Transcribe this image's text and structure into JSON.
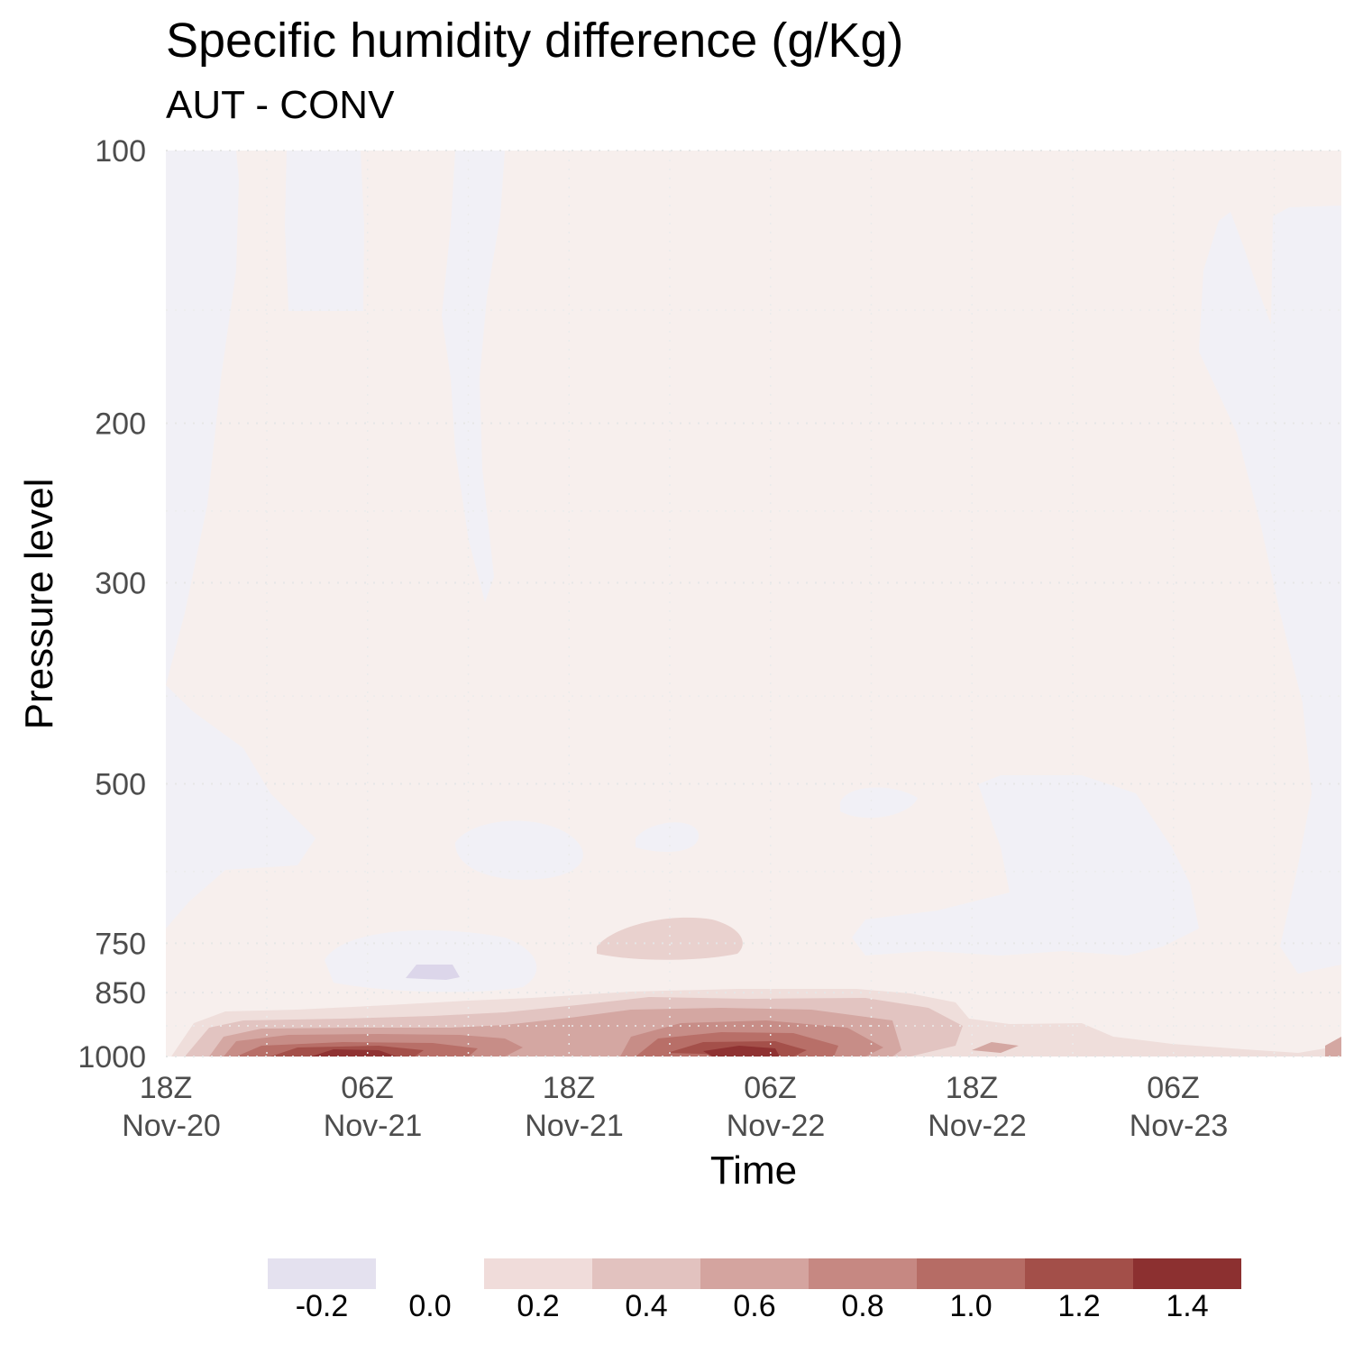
{
  "chart_data": {
    "type": "heatmap",
    "title": "Specific humidity difference (g/Kg)",
    "subtitle": "AUT - CONV",
    "xlabel": "Time",
    "ylabel": "Pressure level",
    "x_ticks": [
      {
        "time": "18Z",
        "date": "Nov-20"
      },
      {
        "time": "06Z",
        "date": "Nov-21"
      },
      {
        "time": "18Z",
        "date": "Nov-21"
      },
      {
        "time": "06Z",
        "date": "Nov-22"
      },
      {
        "time": "18Z",
        "date": "Nov-22"
      },
      {
        "time": "06Z",
        "date": "Nov-23"
      }
    ],
    "xlim": [
      "Nov-20 18Z",
      "Nov-23 17Z"
    ],
    "y_scale": "log",
    "y_reversed": true,
    "y_ticks": [
      100,
      200,
      300,
      500,
      750,
      850,
      1000
    ],
    "ylim": [
      1000,
      100
    ],
    "grid": true,
    "legend": {
      "position": "bottom",
      "swatches": [
        {
          "value": -0.2,
          "label": "-0.2",
          "color": "#e4e1ef"
        },
        {
          "value": 0.0,
          "label": "0.0",
          "color": "#ffffff"
        },
        {
          "value": 0.2,
          "label": "0.2",
          "color": "#f0dcda"
        },
        {
          "value": 0.4,
          "label": "0.4",
          "color": "#e2c2bf"
        },
        {
          "value": 0.6,
          "label": "0.6",
          "color": "#d4a49f"
        },
        {
          "value": 0.8,
          "label": "0.8",
          "color": "#c68882"
        },
        {
          "value": 1.0,
          "label": "1.0",
          "color": "#b66c65"
        },
        {
          "value": 1.2,
          "label": "1.2",
          "color": "#a34f49"
        },
        {
          "value": 1.4,
          "label": "1.4",
          "color": "#8c3030"
        }
      ]
    },
    "background_colors": {
      "positive_faint": "#f7efed",
      "negative_faint": "#f1f0f6"
    }
  }
}
